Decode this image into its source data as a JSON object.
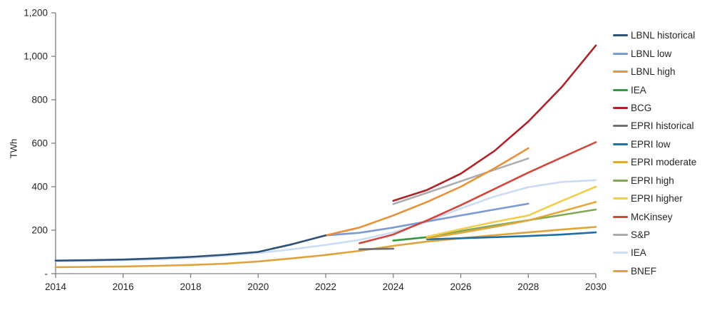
{
  "chart_data": {
    "type": "line",
    "title": "",
    "ylabel": "TWh",
    "xlabel": "",
    "xlim": [
      2014,
      2030
    ],
    "ylim": [
      0,
      1200
    ],
    "grid": false,
    "legend_position": "right",
    "axis_color": "#808080",
    "text_color": "#262626",
    "x_ticks": [
      {
        "label": "2014",
        "value": 2014
      },
      {
        "label": "2016",
        "value": 2016
      },
      {
        "label": "2018",
        "value": 2018
      },
      {
        "label": "2020",
        "value": 2020
      },
      {
        "label": "2022",
        "value": 2022
      },
      {
        "label": "2024",
        "value": 2024
      },
      {
        "label": "2026",
        "value": 2026
      },
      {
        "label": "2028",
        "value": 2028
      },
      {
        "label": "2030",
        "value": 2030
      }
    ],
    "y_ticks": [
      {
        "label": "1,200",
        "value": 1200
      },
      {
        "label": "1,000",
        "value": 1000
      },
      {
        "label": "800",
        "value": 800
      },
      {
        "label": "600",
        "value": 600
      },
      {
        "label": "400",
        "value": 400
      },
      {
        "label": "200",
        "value": 200
      },
      {
        "label": "-",
        "value": 0
      }
    ],
    "series": [
      {
        "name": "LBNL historical",
        "color": "#2E5077",
        "points": [
          [
            2014,
            60
          ],
          [
            2015,
            62
          ],
          [
            2016,
            65
          ],
          [
            2017,
            70
          ],
          [
            2018,
            77
          ],
          [
            2019,
            87
          ],
          [
            2020,
            100
          ],
          [
            2021,
            135
          ],
          [
            2022,
            176
          ]
        ]
      },
      {
        "name": "LBNL low",
        "color": "#7C9BD3",
        "points": [
          [
            2022,
            176
          ],
          [
            2023,
            188
          ],
          [
            2024,
            212
          ],
          [
            2025,
            240
          ],
          [
            2026,
            268
          ],
          [
            2027,
            295
          ],
          [
            2028,
            322
          ]
        ]
      },
      {
        "name": "LBNL high",
        "color": "#E8913B",
        "points": [
          [
            2022,
            176
          ],
          [
            2023,
            212
          ],
          [
            2024,
            268
          ],
          [
            2025,
            330
          ],
          [
            2026,
            400
          ],
          [
            2027,
            485
          ],
          [
            2028,
            577
          ]
        ]
      },
      {
        "name": "IEA",
        "color": "#33993C",
        "points": [
          [
            2024,
            152
          ],
          [
            2025,
            168
          ],
          [
            2026,
            192
          ]
        ]
      },
      {
        "name": "BCG",
        "color": "#AF2228",
        "points": [
          [
            2024,
            335
          ],
          [
            2025,
            385
          ],
          [
            2026,
            460
          ],
          [
            2027,
            565
          ],
          [
            2028,
            700
          ],
          [
            2029,
            860
          ],
          [
            2030,
            1050
          ]
        ]
      },
      {
        "name": "EPRI historical",
        "color": "#6F6F6F",
        "points": [
          [
            2023,
            112
          ],
          [
            2024,
            115
          ]
        ]
      },
      {
        "name": "EPRI low",
        "color": "#1C70A6",
        "points": [
          [
            2025,
            158
          ],
          [
            2026,
            163
          ],
          [
            2027,
            168
          ],
          [
            2028,
            173
          ],
          [
            2029,
            180
          ],
          [
            2030,
            190
          ]
        ]
      },
      {
        "name": "EPRI moderate",
        "color": "#E3A83C",
        "points": [
          [
            2025,
            163
          ],
          [
            2026,
            188
          ],
          [
            2027,
            215
          ],
          [
            2028,
            245
          ],
          [
            2029,
            287
          ],
          [
            2030,
            330
          ]
        ]
      },
      {
        "name": "EPRI high",
        "color": "#82A854",
        "points": [
          [
            2025,
            166
          ],
          [
            2026,
            196
          ],
          [
            2027,
            222
          ],
          [
            2028,
            246
          ],
          [
            2029,
            270
          ],
          [
            2030,
            295
          ]
        ]
      },
      {
        "name": "EPRI higher",
        "color": "#F2CE4D",
        "points": [
          [
            2025,
            170
          ],
          [
            2026,
            205
          ],
          [
            2027,
            238
          ],
          [
            2028,
            268
          ],
          [
            2029,
            335
          ],
          [
            2030,
            400
          ]
        ]
      },
      {
        "name": "McKinsey",
        "color": "#D3463C",
        "points": [
          [
            2023,
            140
          ],
          [
            2024,
            180
          ],
          [
            2025,
            245
          ],
          [
            2026,
            315
          ],
          [
            2027,
            390
          ],
          [
            2028,
            465
          ],
          [
            2029,
            535
          ],
          [
            2030,
            605
          ]
        ]
      },
      {
        "name": "S&P",
        "color": "#ADADAD",
        "points": [
          [
            2024,
            320
          ],
          [
            2025,
            372
          ],
          [
            2026,
            425
          ],
          [
            2027,
            478
          ],
          [
            2028,
            530
          ]
        ]
      },
      {
        "name": "IEA",
        "color": "#CBDCF4",
        "points": [
          [
            2014,
            57
          ],
          [
            2015,
            59
          ],
          [
            2016,
            62
          ],
          [
            2017,
            66
          ],
          [
            2018,
            72
          ],
          [
            2019,
            82
          ],
          [
            2020,
            95
          ],
          [
            2021,
            112
          ],
          [
            2022,
            132
          ],
          [
            2023,
            155
          ],
          [
            2024,
            190
          ],
          [
            2025,
            240
          ],
          [
            2026,
            300
          ],
          [
            2027,
            355
          ],
          [
            2028,
            398
          ],
          [
            2029,
            422
          ],
          [
            2030,
            430
          ]
        ]
      },
      {
        "name": "BNEF",
        "color": "#E0A33B",
        "points": [
          [
            2014,
            30
          ],
          [
            2015,
            31
          ],
          [
            2016,
            33
          ],
          [
            2017,
            36
          ],
          [
            2018,
            40
          ],
          [
            2019,
            46
          ],
          [
            2020,
            56
          ],
          [
            2021,
            70
          ],
          [
            2022,
            86
          ],
          [
            2023,
            105
          ],
          [
            2024,
            128
          ],
          [
            2025,
            148
          ],
          [
            2026,
            163
          ],
          [
            2027,
            177
          ],
          [
            2028,
            190
          ],
          [
            2029,
            203
          ],
          [
            2030,
            215
          ]
        ]
      }
    ],
    "draw_order": [
      3,
      12,
      11,
      13,
      6,
      8,
      7,
      9,
      1,
      10,
      2,
      4,
      5,
      0
    ]
  }
}
